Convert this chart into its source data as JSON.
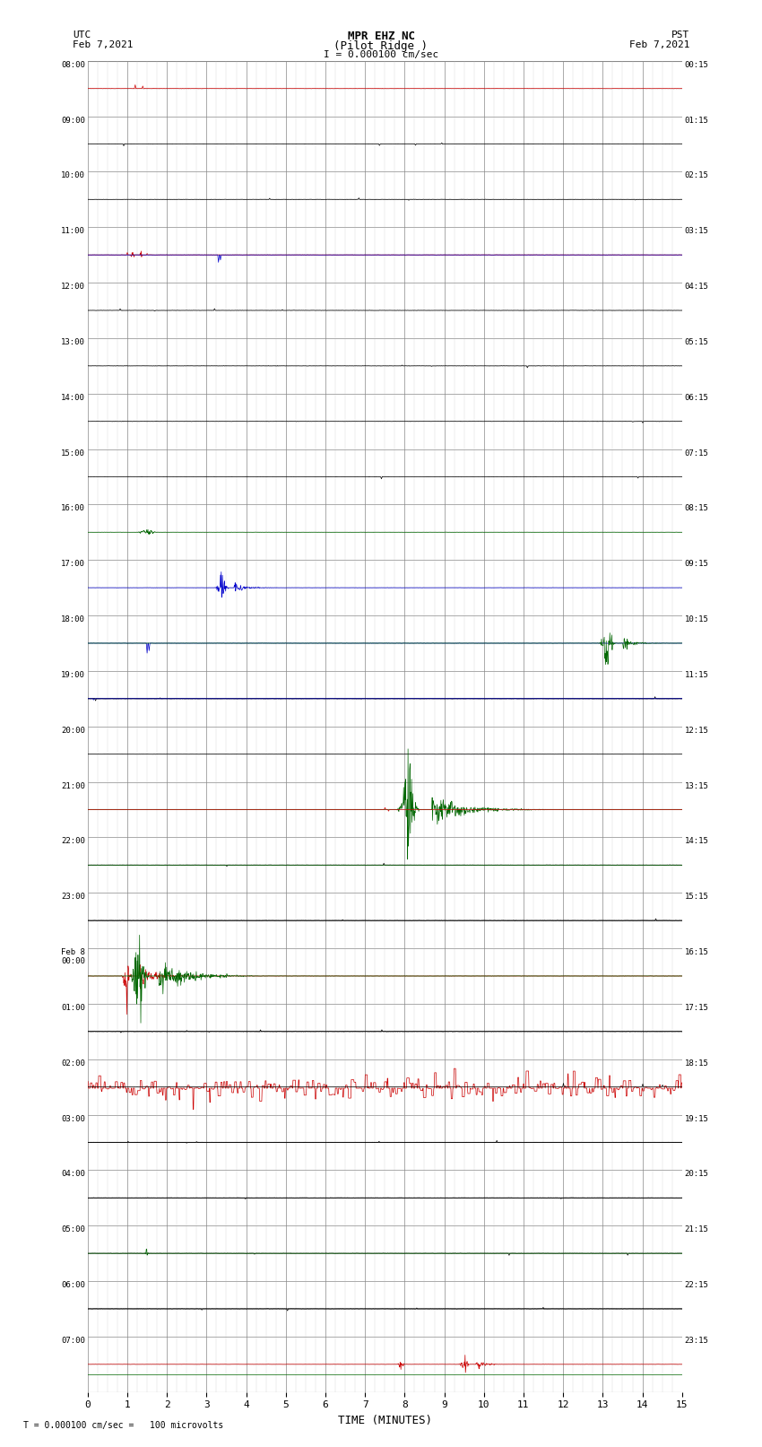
{
  "title_line1": "MPR EHZ NC",
  "title_line2": "(Pilot Ridge )",
  "title_scale": "I = 0.000100 cm/sec",
  "left_label_line1": "UTC",
  "left_label_line2": "Feb 7,2021",
  "right_label_line1": "PST",
  "right_label_line2": "Feb 7,2021",
  "bottom_label": "TIME (MINUTES)",
  "bottom_note": "T = 0.000100 cm/sec =   100 microvolts",
  "utc_labels": [
    "08:00",
    "09:00",
    "10:00",
    "11:00",
    "12:00",
    "13:00",
    "14:00",
    "15:00",
    "16:00",
    "17:00",
    "18:00",
    "19:00",
    "20:00",
    "21:00",
    "22:00",
    "23:00",
    "Feb 8\n00:00",
    "01:00",
    "02:00",
    "03:00",
    "04:00",
    "05:00",
    "06:00",
    "07:00"
  ],
  "pst_labels": [
    "00:15",
    "01:15",
    "02:15",
    "03:15",
    "04:15",
    "05:15",
    "06:15",
    "07:15",
    "08:15",
    "09:15",
    "10:15",
    "11:15",
    "12:15",
    "13:15",
    "14:15",
    "15:15",
    "16:15",
    "17:15",
    "18:15",
    "19:15",
    "20:15",
    "21:15",
    "22:15",
    "23:15"
  ],
  "n_rows": 24,
  "minutes": 15,
  "background_color": "#ffffff",
  "grid_color": "#888888",
  "subgrid_color": "#bbbbbb"
}
